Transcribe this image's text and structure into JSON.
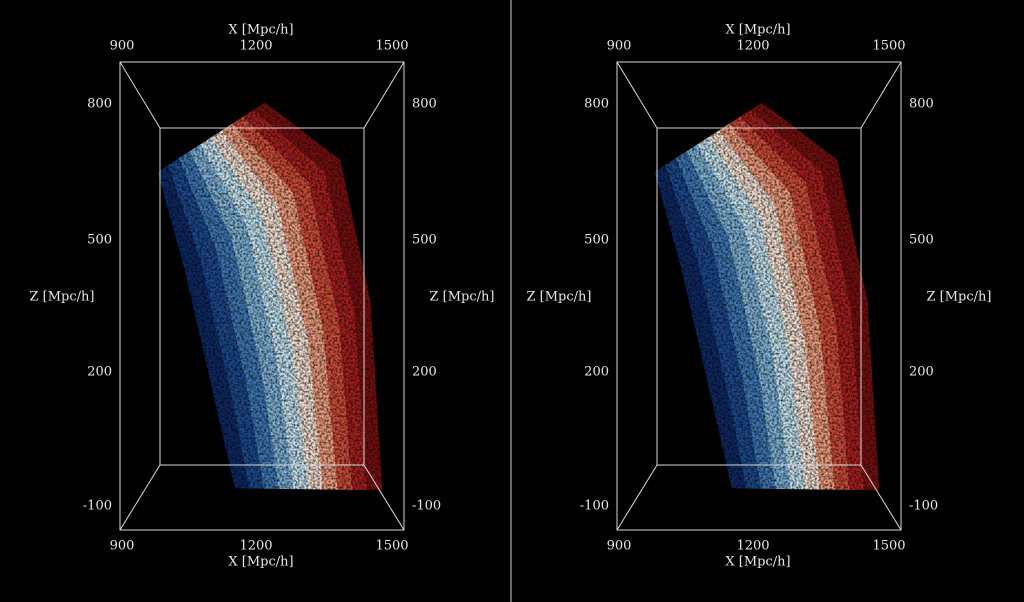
{
  "panels": [
    {
      "top_x_label": "X [Mpc/h]",
      "top_x_ticks": [
        900,
        1200,
        1500
      ],
      "bottom_x_label": "X [Mpc/h]",
      "bottom_x_ticks": [
        900,
        1200,
        1500
      ],
      "left_z_label": "Z [Mpc/h]",
      "left_z_ticks": [
        800,
        500,
        200,
        -100
      ],
      "right_z_label": "Z [Mpc/h]",
      "right_z_ticks": [
        800,
        500,
        200,
        -100
      ]
    },
    {
      "top_x_label": "X [Mpc/h]",
      "top_x_ticks": [
        900,
        1200,
        1500
      ],
      "bottom_x_label": "X [Mpc/h]",
      "bottom_x_ticks": [
        900,
        1200,
        1500
      ],
      "left_z_label": "Z [Mpc/h]",
      "left_z_ticks": [
        800,
        500,
        200,
        -100
      ],
      "right_z_label": "Z [Mpc/h]",
      "right_z_ticks": [
        800,
        500,
        200,
        -100
      ]
    }
  ]
}
